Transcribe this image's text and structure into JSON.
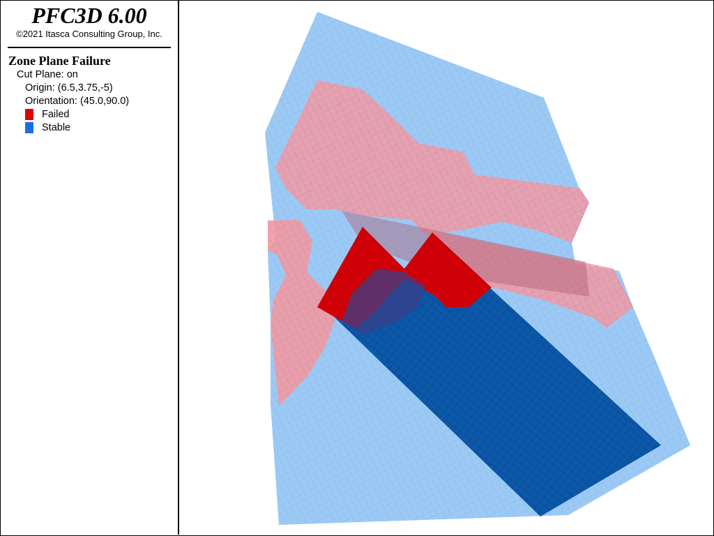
{
  "app": {
    "title": "PFC3D 6.00",
    "copyright": "©2021 Itasca Consulting Group, Inc."
  },
  "legend": {
    "plot_title": "Zone Plane Failure",
    "cut_plane": "Cut Plane: on",
    "origin": "Origin: (6.5,3.75,-5)",
    "orientation": "Orientation: (45.0,90.0)",
    "items": [
      {
        "label": "Failed",
        "color": "#e00000"
      },
      {
        "label": "Stable",
        "color": "#1a6fe0"
      }
    ]
  },
  "colors": {
    "stable_transparent": "#9ccaf5",
    "failed_transparent": "#f09aa4",
    "failed_solid": "#d20006",
    "stable_solid": "#0b57a8"
  }
}
